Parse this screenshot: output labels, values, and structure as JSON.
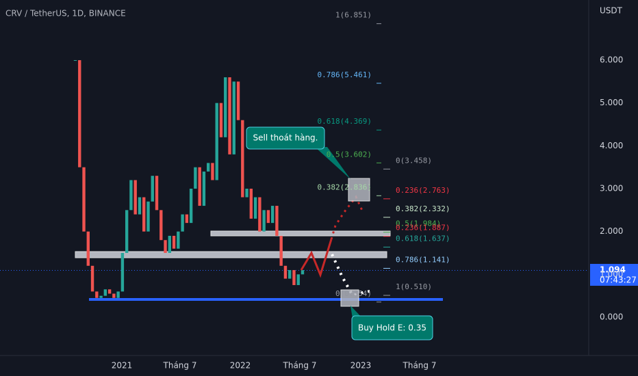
{
  "header": {
    "symbol": "CRV / TetherUS, 1D, BINANCE"
  },
  "price_axis": {
    "unit": "USDT",
    "ticks": [
      {
        "value": 6,
        "label": "6.000"
      },
      {
        "value": 5,
        "label": "5.000"
      },
      {
        "value": 4,
        "label": "4.000"
      },
      {
        "value": 3,
        "label": "3.000"
      },
      {
        "value": 2,
        "label": "2.000"
      },
      {
        "value": 1,
        "label": "1.000"
      },
      {
        "value": 0,
        "label": "0.000"
      }
    ],
    "current_price": {
      "value": 1.094,
      "label": "1.094"
    },
    "countdown": "07:43:27"
  },
  "time_axis": {
    "labels": [
      "2021",
      "Tháng 7",
      "2022",
      "Tháng 7",
      "2023",
      "Tháng 7"
    ]
  },
  "price_history": {
    "up_color": "#26a69a",
    "down_color": "#ef5350",
    "values": [
      6.0,
      3.5,
      2.0,
      1.2,
      0.6,
      0.45,
      0.5,
      0.65,
      0.55,
      0.45,
      0.6,
      1.5,
      2.5,
      3.2,
      2.4,
      2.8,
      2.0,
      2.7,
      3.3,
      2.5,
      1.8,
      1.5,
      1.9,
      1.6,
      2.0,
      2.4,
      2.2,
      3.0,
      3.5,
      2.6,
      3.4,
      3.6,
      3.2,
      5.0,
      4.2,
      5.6,
      3.8,
      5.5,
      4.6,
      2.8,
      3.0,
      2.3,
      2.8,
      2.0,
      2.5,
      2.2,
      2.6,
      1.9,
      1.2,
      0.9,
      1.1,
      0.75,
      1.0,
      1.1
    ]
  },
  "fib_upper": [
    {
      "value": 6.851,
      "label": "1(6.851)",
      "color": "#9598a1"
    },
    {
      "value": 5.461,
      "label": "0.786(5.461)",
      "color": "#64b5f6"
    },
    {
      "value": 4.369,
      "label": "0.618(4.369)",
      "color": "#089981"
    },
    {
      "value": 3.602,
      "label": "0.5(3.602)",
      "color": "#4caf50"
    },
    {
      "value": 2.836,
      "label": "0.382(2.836)",
      "color": "#a5d6a7"
    },
    {
      "value": 0.354,
      "label": "0(0.354)",
      "color": "#9598a1"
    }
  ],
  "fib_lower": [
    {
      "value": 3.458,
      "label": "0(3.458)",
      "color": "#9598a1"
    },
    {
      "value": 2.763,
      "label": "0.236(2.763)",
      "color": "#f23645"
    },
    {
      "value": 2.332,
      "label": "0.382(2.332)",
      "color": "#c8e6c9"
    },
    {
      "value": 1.984,
      "label": "0.5(1.984)",
      "color": "#4caf50"
    },
    {
      "value": 1.887,
      "label": "0.236(1.887)",
      "color": "#f23645"
    },
    {
      "value": 1.637,
      "label": "0.618(1.637)",
      "color": "#26a69a"
    },
    {
      "value": 1.141,
      "label": "0.786(1.141)",
      "color": "#90caf9"
    },
    {
      "value": 0.51,
      "label": "1(0.510)",
      "color": "#9598a1"
    }
  ],
  "annotations": {
    "sell": "Sell thoát hàng.",
    "buy": "Buy Hold E: 0.35"
  }
}
